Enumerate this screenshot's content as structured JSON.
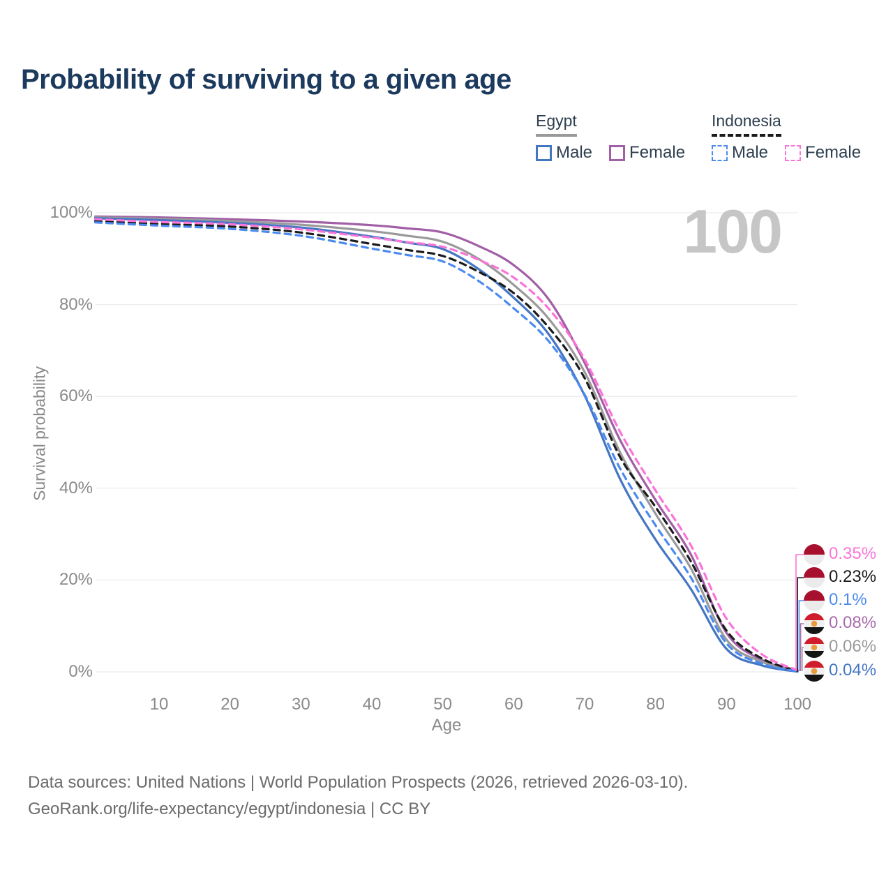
{
  "header": {
    "title": "Probability of surviving to a given age"
  },
  "legend": {
    "groups": [
      {
        "country": "Egypt",
        "underline_style": "solid",
        "underline_color": "#9a9a9a",
        "items": [
          {
            "label": "Male",
            "color": "#4576c4",
            "dashed": false
          },
          {
            "label": "Female",
            "color": "#a15fa5",
            "dashed": false
          }
        ]
      },
      {
        "country": "Indonesia",
        "underline_style": "dashed",
        "underline_color": "#1b1b1b",
        "items": [
          {
            "label": "Male",
            "color": "#4b8bf0",
            "dashed": true
          },
          {
            "label": "Female",
            "color": "#fb74d8",
            "dashed": true
          }
        ]
      }
    ]
  },
  "chart": {
    "age_counter": "100",
    "ylabel": "Survival probability",
    "xlabel": "Age",
    "y_ticks": [
      "0%",
      "20%",
      "40%",
      "60%",
      "80%",
      "100%"
    ],
    "x_ticks": [
      "10",
      "20",
      "30",
      "40",
      "50",
      "60",
      "70",
      "80",
      "90",
      "100"
    ],
    "gridline_color": "#ececec",
    "tick_color": "#8a8a8a"
  },
  "chart_data": {
    "type": "line",
    "title": "Probability of surviving to a given age",
    "xlabel": "Age",
    "ylabel": "Survival probability",
    "xlim": [
      1,
      100
    ],
    "ylim": [
      0,
      100
    ],
    "grid": "horizontal",
    "legend_position": "top-right",
    "ages": [
      1,
      10,
      20,
      30,
      40,
      45,
      50,
      55,
      60,
      65,
      70,
      75,
      80,
      85,
      90,
      95,
      100
    ],
    "series": [
      {
        "name": "Egypt Female",
        "country": "Egypt",
        "sex": "Female",
        "color": "#a15fa5",
        "dash": "solid",
        "values": [
          99.2,
          99.0,
          98.6,
          98.1,
          97.3,
          96.6,
          95.7,
          92.8,
          88.6,
          81.0,
          67.3,
          50.5,
          37.4,
          25.5,
          8.5,
          2.6,
          0.08
        ],
        "end_label": "0.08%"
      },
      {
        "name": "Egypt Both sexes",
        "country": "Egypt",
        "sex": "Both",
        "color": "#9a9a9a",
        "dash": "solid",
        "values": [
          99.0,
          98.7,
          98.2,
          97.4,
          96.0,
          95.0,
          93.7,
          90.0,
          84.3,
          76.8,
          65.3,
          47.8,
          34.4,
          22.5,
          7.0,
          2.2,
          0.06
        ],
        "end_label": "0.06%"
      },
      {
        "name": "Egypt Male",
        "country": "Egypt",
        "sex": "Male",
        "color": "#4576c4",
        "dash": "solid",
        "values": [
          98.8,
          98.4,
          97.8,
          96.8,
          94.8,
          93.5,
          92.1,
          87.8,
          81.5,
          73.4,
          60.2,
          42.0,
          28.8,
          18.0,
          5.0,
          1.4,
          0.04
        ],
        "end_label": "0.04%"
      },
      {
        "name": "Indonesia Both sexes",
        "country": "Indonesia",
        "sex": "Both",
        "color": "#1b1b1b",
        "dash": "dashed",
        "values": [
          98.2,
          97.6,
          97.0,
          95.7,
          93.2,
          91.9,
          90.6,
          87.2,
          82.5,
          74.9,
          64.0,
          46.8,
          35.9,
          24.0,
          9.0,
          2.9,
          0.23
        ],
        "end_label": "0.23%"
      },
      {
        "name": "Indonesia Male",
        "country": "Indonesia",
        "sex": "Male",
        "color": "#4b8bf0",
        "dash": "dashed",
        "values": [
          97.9,
          97.2,
          96.5,
          95.0,
          92.2,
          90.8,
          89.4,
          85.2,
          79.2,
          71.9,
          60.4,
          44.3,
          31.9,
          20.5,
          6.2,
          1.8,
          0.1
        ],
        "end_label": "0.1%"
      },
      {
        "name": "Indonesia Female",
        "country": "Indonesia",
        "sex": "Female",
        "color": "#fb74d8",
        "dash": "dashed",
        "values": [
          98.6,
          98.0,
          97.5,
          96.4,
          94.6,
          93.6,
          92.6,
          89.8,
          85.9,
          79.0,
          68.1,
          52.3,
          39.5,
          27.5,
          11.6,
          3.8,
          0.35
        ],
        "end_label": "0.35%"
      }
    ]
  },
  "end_labels": [
    {
      "value": "0.35%",
      "series": "Indonesia Female",
      "flag": "indonesia",
      "color": "#fb74d8"
    },
    {
      "value": "0.23%",
      "series": "Indonesia Both sexes",
      "flag": "indonesia",
      "color": "#1b1b1b"
    },
    {
      "value": "0.1%",
      "series": "Indonesia Male",
      "flag": "indonesia",
      "color": "#4b8bf0"
    },
    {
      "value": "0.08%",
      "series": "Egypt Female",
      "flag": "egypt",
      "color": "#a86bac"
    },
    {
      "value": "0.06%",
      "series": "Egypt Both sexes",
      "flag": "egypt",
      "color": "#9a9a9a"
    },
    {
      "value": "0.04%",
      "series": "Egypt Male",
      "flag": "egypt",
      "color": "#4576c4"
    }
  ],
  "footer": {
    "line1": "Data sources: United Nations | World Population Prospects (2026, retrieved 2026-03-10).",
    "line2": "GeoRank.org/life-expectancy/egypt/indonesia | CC BY"
  }
}
